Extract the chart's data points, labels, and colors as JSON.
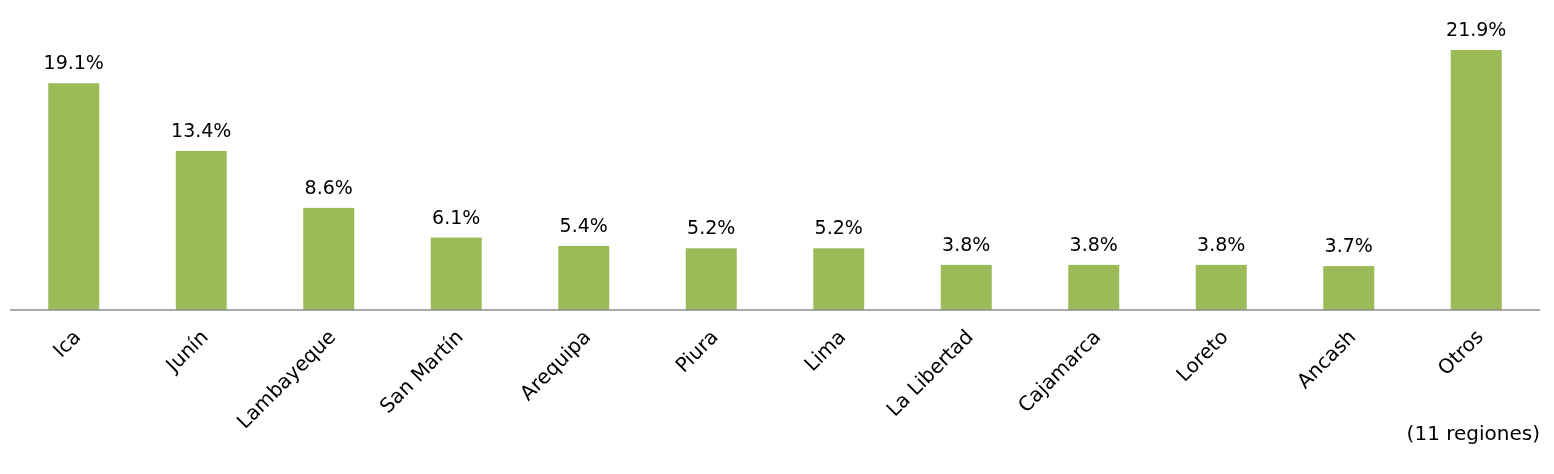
{
  "chart_data": {
    "type": "bar",
    "categories": [
      "Ica",
      "Junín",
      "Lambayeque",
      "San Martín",
      "Arequipa",
      "Piura",
      "Lima",
      "La Libertad",
      "Cajamarca",
      "Loreto",
      "Ancash",
      "Otros"
    ],
    "values": [
      19.1,
      13.4,
      8.6,
      6.1,
      5.4,
      5.2,
      5.2,
      3.8,
      3.8,
      3.8,
      3.7,
      21.9
    ],
    "value_labels": [
      "19.1%",
      "13.4%",
      "8.6%",
      "6.1%",
      "5.4%",
      "5.2%",
      "5.2%",
      "3.8%",
      "3.8%",
      "3.8%",
      "3.7%",
      "21.9%"
    ],
    "color": "#9bbb59",
    "annotations": [
      "(11 regiones)"
    ]
  }
}
